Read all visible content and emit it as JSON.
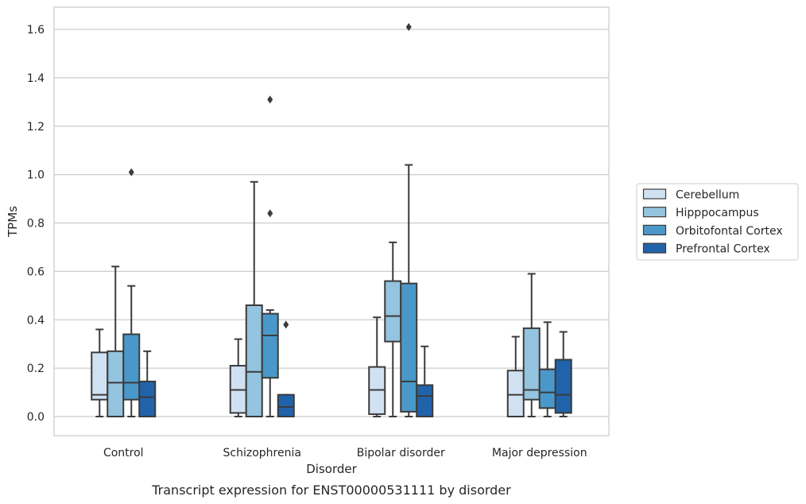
{
  "chart_data": {
    "type": "box",
    "xlabel": "Disorder",
    "ylabel": "TPMs",
    "caption": "Transcript expression for ENST00000531111 by disorder",
    "ylim": [
      -0.08,
      1.69
    ],
    "yticks": [
      "0.0",
      "0.2",
      "0.4",
      "0.6",
      "0.8",
      "1.0",
      "1.2",
      "1.4",
      "1.6"
    ],
    "grid": "horizontal",
    "legend_position": "right",
    "categories": [
      "Control",
      "Schizophrenia",
      "Bipolar disorder",
      "Major depression"
    ],
    "series": [
      {
        "name": "Cerebellum",
        "color": "#d0e1f2",
        "boxes": [
          {
            "whislo": 0.0,
            "q1": 0.07,
            "med": 0.09,
            "q3": 0.265,
            "whishi": 0.36,
            "fliers": []
          },
          {
            "whislo": 0.0,
            "q1": 0.015,
            "med": 0.11,
            "q3": 0.21,
            "whishi": 0.32,
            "fliers": []
          },
          {
            "whislo": 0.0,
            "q1": 0.01,
            "med": 0.11,
            "q3": 0.205,
            "whishi": 0.41,
            "fliers": []
          },
          {
            "whislo": 0.0,
            "q1": 0.0,
            "med": 0.09,
            "q3": 0.19,
            "whishi": 0.33,
            "fliers": []
          }
        ]
      },
      {
        "name": "Hipppocampus",
        "color": "#94c4df",
        "boxes": [
          {
            "whislo": 0.0,
            "q1": 0.0,
            "med": 0.14,
            "q3": 0.27,
            "whishi": 0.62,
            "fliers": []
          },
          {
            "whislo": 0.0,
            "q1": 0.0,
            "med": 0.185,
            "q3": 0.46,
            "whishi": 0.97,
            "fliers": []
          },
          {
            "whislo": 0.0,
            "q1": 0.31,
            "med": 0.415,
            "q3": 0.56,
            "whishi": 0.72,
            "fliers": []
          },
          {
            "whislo": 0.0,
            "q1": 0.07,
            "med": 0.11,
            "q3": 0.365,
            "whishi": 0.59,
            "fliers": []
          }
        ]
      },
      {
        "name": "Orbitofontal Cortex",
        "color": "#4a98c9",
        "boxes": [
          {
            "whislo": 0.0,
            "q1": 0.07,
            "med": 0.14,
            "q3": 0.34,
            "whishi": 0.54,
            "fliers": [
              1.01
            ]
          },
          {
            "whislo": 0.0,
            "q1": 0.16,
            "med": 0.335,
            "q3": 0.425,
            "whishi": 0.44,
            "fliers": [
              0.84,
              1.31
            ]
          },
          {
            "whislo": 0.0,
            "q1": 0.02,
            "med": 0.145,
            "q3": 0.55,
            "whishi": 1.04,
            "fliers": [
              1.61
            ]
          },
          {
            "whislo": 0.0,
            "q1": 0.035,
            "med": 0.1,
            "q3": 0.195,
            "whishi": 0.39,
            "fliers": []
          }
        ]
      },
      {
        "name": "Prefrontal Cortex",
        "color": "#2163aa",
        "boxes": [
          {
            "whislo": 0.0,
            "q1": 0.0,
            "med": 0.08,
            "q3": 0.145,
            "whishi": 0.27,
            "fliers": []
          },
          {
            "whislo": 0.0,
            "q1": 0.0,
            "med": 0.04,
            "q3": 0.09,
            "whishi": 0.09,
            "fliers": [
              0.38
            ]
          },
          {
            "whislo": 0.0,
            "q1": 0.0,
            "med": 0.085,
            "q3": 0.13,
            "whishi": 0.29,
            "fliers": []
          },
          {
            "whislo": 0.0,
            "q1": 0.015,
            "med": 0.09,
            "q3": 0.235,
            "whishi": 0.35,
            "fliers": []
          }
        ]
      }
    ]
  }
}
